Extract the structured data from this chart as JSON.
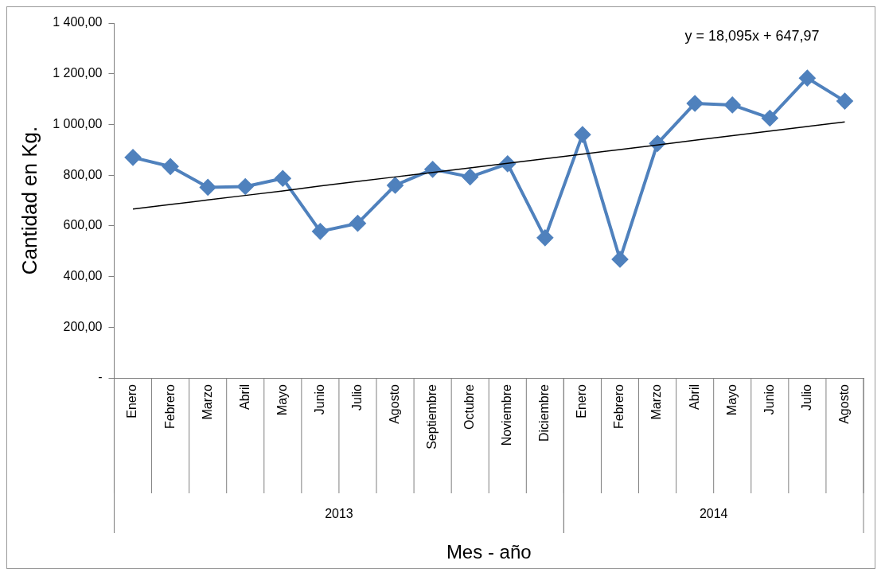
{
  "chart_data": {
    "type": "line",
    "xlabel": "Mes - año",
    "ylabel": "Cantidad en Kg.",
    "categories": [
      "Enero",
      "Febrero",
      "Marzo",
      "Abril",
      "Mayo",
      "Junio",
      "Julio",
      "Agosto",
      "Septiembre",
      "Octubre",
      "Noviembre",
      "Diciembre",
      "Enero",
      "Febrero",
      "Marzo",
      "Abril",
      "Mayo",
      "Junio",
      "Julio",
      "Agosto"
    ],
    "series": [
      {
        "color": "#4f81bd",
        "marker": "diamond",
        "values": [
          870,
          834,
          752,
          755,
          787,
          578,
          610,
          760,
          823,
          793,
          845,
          553,
          960,
          468,
          925,
          1083,
          1077,
          1025,
          1183,
          1092
        ]
      },
      {
        "type": "line",
        "color": "#000000",
        "marker": "none",
        "values": [
          666,
          684,
          702,
          720,
          738,
          757,
          775,
          793,
          811,
          829,
          847,
          865,
          883,
          901,
          919,
          938,
          956,
          974,
          992,
          1010
        ]
      }
    ],
    "ylim": [
      0,
      1400
    ],
    "yticks": [
      {
        "value": 0,
        "label": "-"
      },
      {
        "value": 200,
        "label": "200,00"
      },
      {
        "value": 400,
        "label": "400,00"
      },
      {
        "value": 600,
        "label": "600,00"
      },
      {
        "value": 800,
        "label": "800,00"
      },
      {
        "value": 1000,
        "label": "1 000,00"
      },
      {
        "value": 1200,
        "label": "1 200,00"
      },
      {
        "value": 1400,
        "label": "1 400,00"
      }
    ],
    "grid": false,
    "legend": false,
    "annotations": [
      "y = 18,095x + 647,97",
      "2013",
      "2014"
    ]
  }
}
